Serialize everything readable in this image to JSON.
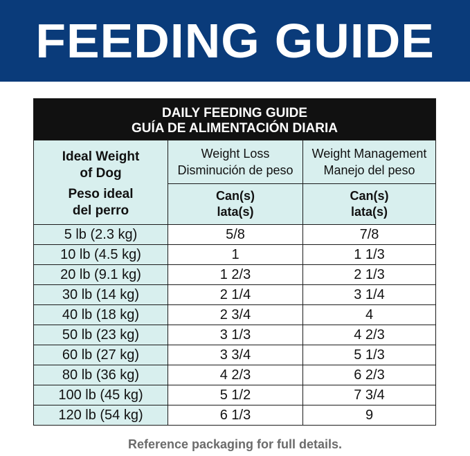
{
  "banner": {
    "title": "FEEDING GUIDE"
  },
  "table": {
    "title_en": "DAILY FEEDING GUIDE",
    "title_es": "GUÍA DE ALIMENTACIÓN DIARIA",
    "weight_header": {
      "en_line1": "Ideal Weight",
      "en_line2": "of Dog",
      "es_line1": "Peso ideal",
      "es_line2": "del perro"
    },
    "columns": [
      {
        "en": "Weight Loss",
        "es": "Disminución de peso",
        "unit_en": "Can(s)",
        "unit_es": "lata(s)"
      },
      {
        "en": "Weight Management",
        "es": "Manejo del peso",
        "unit_en": "Can(s)",
        "unit_es": "lata(s)"
      }
    ],
    "rows": [
      {
        "weight": "5 lb (2.3 kg)",
        "loss": "5/8",
        "management": "7/8"
      },
      {
        "weight": "10 lb (4.5 kg)",
        "loss": "1",
        "management": "1 1/3"
      },
      {
        "weight": "20 lb (9.1 kg)",
        "loss": "1 2/3",
        "management": "2 1/3"
      },
      {
        "weight": "30 lb (14 kg)",
        "loss": "2 1/4",
        "management": "3 1/4"
      },
      {
        "weight": "40 lb (18 kg)",
        "loss": "2 3/4",
        "management": "4"
      },
      {
        "weight": "50 lb (23 kg)",
        "loss": "3 1/3",
        "management": "4 2/3"
      },
      {
        "weight": "60 lb (27 kg)",
        "loss": "3 3/4",
        "management": "5 1/3"
      },
      {
        "weight": "80 lb (36 kg)",
        "loss": "4 2/3",
        "management": "6 2/3"
      },
      {
        "weight": "100 lb (45 kg)",
        "loss": "5 1/2",
        "management": "7 3/4"
      },
      {
        "weight": "120 lb (54 kg)",
        "loss": "6 1/3",
        "management": "9"
      }
    ]
  },
  "footnote": "Reference packaging for full details.",
  "colors": {
    "banner": "#0a3b7a",
    "header_bg": "#d8efee",
    "title_bg": "#111111",
    "footnote": "#6b6b6b"
  }
}
